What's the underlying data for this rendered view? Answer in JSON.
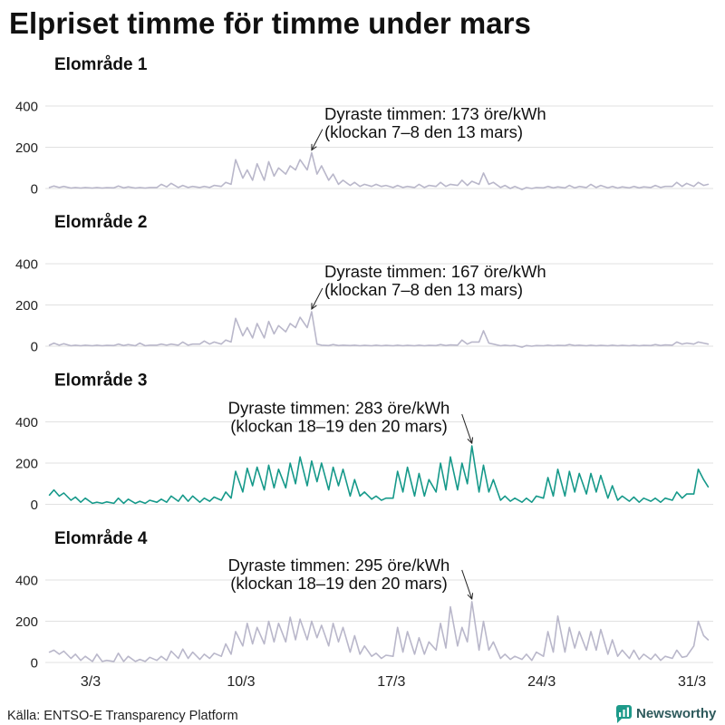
{
  "chart_data": {
    "type": "line",
    "title": "Elpriset timme för timme under mars",
    "x_ticks": [
      "3/3",
      "10/3",
      "17/3",
      "24/3",
      "31/3"
    ],
    "y_ticks": [
      0,
      200,
      400
    ],
    "ylim": [
      0,
      400
    ],
    "grid": "horizontal",
    "x": [
      "1/3 02:00",
      "1/3 07:00",
      "1/3 13:00",
      "1/3 18:00",
      "2/3 02:00",
      "2/3 07:00",
      "2/3 13:00",
      "2/3 18:00",
      "3/3 02:00",
      "3/3 07:00",
      "3/3 13:00",
      "3/3 18:00",
      "4/3 02:00",
      "4/3 07:00",
      "4/3 13:00",
      "4/3 18:00",
      "5/3 02:00",
      "5/3 07:00",
      "5/3 13:00",
      "5/3 18:00",
      "6/3 02:00",
      "6/3 07:00",
      "6/3 13:00",
      "6/3 18:00",
      "7/3 02:00",
      "7/3 07:00",
      "7/3 13:00",
      "7/3 18:00",
      "8/3 02:00",
      "8/3 07:00",
      "8/3 13:00",
      "8/3 18:00",
      "9/3 02:00",
      "9/3 07:00",
      "9/3 13:00",
      "9/3 18:00",
      "10/3 02:00",
      "10/3 07:00",
      "10/3 13:00",
      "10/3 18:00",
      "11/3 02:00",
      "11/3 07:00",
      "11/3 13:00",
      "11/3 18:00",
      "12/3 02:00",
      "12/3 07:00",
      "12/3 13:00",
      "12/3 18:00",
      "13/3 02:00",
      "13/3 07:00",
      "13/3 13:00",
      "13/3 18:00",
      "14/3 02:00",
      "14/3 07:00",
      "14/3 13:00",
      "14/3 18:00",
      "15/3 02:00",
      "15/3 07:00",
      "15/3 13:00",
      "15/3 18:00",
      "16/3 02:00",
      "16/3 07:00",
      "16/3 13:00",
      "16/3 18:00",
      "17/3 02:00",
      "17/3 07:00",
      "17/3 13:00",
      "17/3 18:00",
      "18/3 02:00",
      "18/3 07:00",
      "18/3 13:00",
      "18/3 18:00",
      "19/3 02:00",
      "19/3 07:00",
      "19/3 13:00",
      "19/3 18:00",
      "20/3 02:00",
      "20/3 07:00",
      "20/3 13:00",
      "20/3 18:00",
      "21/3 02:00",
      "21/3 07:00",
      "21/3 13:00",
      "21/3 18:00",
      "22/3 02:00",
      "22/3 07:00",
      "22/3 13:00",
      "22/3 18:00",
      "23/3 02:00",
      "23/3 07:00",
      "23/3 13:00",
      "23/3 18:00",
      "24/3 02:00",
      "24/3 07:00",
      "24/3 13:00",
      "24/3 18:00",
      "25/3 02:00",
      "25/3 07:00",
      "25/3 13:00",
      "25/3 18:00",
      "26/3 02:00",
      "26/3 07:00",
      "26/3 13:00",
      "26/3 18:00",
      "27/3 02:00",
      "27/3 07:00",
      "27/3 13:00",
      "27/3 18:00",
      "28/3 02:00",
      "28/3 07:00",
      "28/3 13:00",
      "28/3 18:00",
      "29/3 02:00",
      "29/3 07:00",
      "29/3 13:00",
      "29/3 18:00",
      "30/3 02:00",
      "30/3 07:00",
      "30/3 13:00",
      "30/3 18:00",
      "31/3 02:00",
      "31/3 07:00",
      "31/3 13:00",
      "31/3 18:00"
    ],
    "series": [
      {
        "name": "Elområde 1",
        "color": "#b9b7ca",
        "annotation": [
          "Dyraste timmen: 173 öre/kWh",
          "(klockan 7–8 den 13 mars)"
        ],
        "values": [
          5,
          12,
          5,
          10,
          2,
          5,
          2,
          5,
          2,
          5,
          2,
          4,
          3,
          12,
          3,
          8,
          2,
          5,
          2,
          5,
          5,
          20,
          8,
          25,
          5,
          15,
          5,
          10,
          5,
          10,
          5,
          15,
          10,
          30,
          20,
          140,
          50,
          90,
          40,
          120,
          40,
          130,
          60,
          100,
          70,
          110,
          90,
          140,
          90,
          173,
          70,
          110,
          40,
          70,
          20,
          40,
          15,
          30,
          10,
          20,
          10,
          20,
          10,
          15,
          5,
          15,
          5,
          10,
          5,
          20,
          5,
          15,
          10,
          30,
          10,
          20,
          15,
          40,
          15,
          35,
          20,
          75,
          20,
          30,
          5,
          15,
          0,
          10,
          -5,
          5,
          0,
          5,
          3,
          10,
          3,
          8,
          3,
          15,
          3,
          10,
          5,
          20,
          5,
          15,
          3,
          10,
          2,
          8,
          3,
          10,
          3,
          8,
          5,
          15,
          5,
          10,
          10,
          30,
          10,
          25,
          10,
          30,
          15,
          20
        ]
      },
      {
        "name": "Elområde 2",
        "color": "#b9b7ca",
        "annotation": [
          "Dyraste timmen: 167 öre/kWh",
          "(klockan 7–8 den 13 mars)"
        ],
        "values": [
          5,
          15,
          5,
          12,
          2,
          5,
          2,
          5,
          2,
          5,
          2,
          4,
          3,
          10,
          3,
          8,
          2,
          15,
          2,
          5,
          5,
          10,
          5,
          10,
          5,
          20,
          5,
          10,
          10,
          25,
          10,
          20,
          10,
          30,
          20,
          135,
          50,
          90,
          40,
          110,
          40,
          120,
          60,
          100,
          70,
          110,
          90,
          140,
          90,
          167,
          10,
          5,
          3,
          8,
          3,
          5,
          3,
          5,
          2,
          4,
          2,
          5,
          2,
          4,
          2,
          5,
          2,
          4,
          2,
          5,
          2,
          4,
          3,
          8,
          3,
          6,
          5,
          30,
          10,
          20,
          20,
          75,
          15,
          10,
          2,
          5,
          2,
          4,
          -5,
          3,
          0,
          3,
          2,
          5,
          2,
          4,
          3,
          8,
          3,
          5,
          2,
          5,
          2,
          4,
          2,
          5,
          2,
          4,
          2,
          5,
          2,
          4,
          3,
          8,
          3,
          6,
          5,
          20,
          10,
          15,
          10,
          20,
          15,
          10
        ]
      },
      {
        "name": "Elområde 3",
        "color": "#16998a",
        "annotation": [
          "Dyraste timmen: 283 öre/kWh",
          "(klockan 18–19 den 20 mars)"
        ],
        "values": [
          45,
          70,
          40,
          55,
          20,
          35,
          10,
          30,
          5,
          10,
          5,
          12,
          5,
          30,
          5,
          25,
          5,
          15,
          5,
          20,
          10,
          25,
          10,
          40,
          15,
          45,
          15,
          40,
          10,
          30,
          15,
          35,
          20,
          60,
          30,
          160,
          60,
          175,
          90,
          180,
          70,
          190,
          80,
          170,
          80,
          200,
          100,
          230,
          90,
          210,
          110,
          200,
          70,
          180,
          90,
          170,
          40,
          120,
          40,
          60,
          25,
          40,
          20,
          30,
          30,
          160,
          60,
          180,
          40,
          150,
          40,
          120,
          60,
          200,
          70,
          230,
          70,
          200,
          100,
          283,
          60,
          190,
          60,
          120,
          20,
          40,
          15,
          30,
          10,
          30,
          10,
          40,
          30,
          130,
          40,
          170,
          40,
          160,
          60,
          150,
          50,
          150,
          60,
          140,
          30,
          90,
          20,
          40,
          15,
          35,
          10,
          30,
          15,
          30,
          10,
          30,
          20,
          60,
          30,
          50,
          50,
          170,
          120,
          85
        ]
      },
      {
        "name": "Elområde 4",
        "color": "#b9b7ca",
        "annotation": [
          "Dyraste timmen: 295 öre/kWh",
          "(klockan 18–19 den 20 mars)"
        ],
        "values": [
          50,
          60,
          40,
          55,
          20,
          40,
          10,
          30,
          5,
          40,
          5,
          10,
          5,
          45,
          5,
          30,
          5,
          15,
          5,
          25,
          10,
          30,
          10,
          55,
          20,
          65,
          20,
          50,
          15,
          40,
          20,
          45,
          30,
          90,
          40,
          150,
          80,
          190,
          90,
          170,
          90,
          200,
          100,
          190,
          100,
          220,
          110,
          210,
          110,
          200,
          120,
          180,
          80,
          190,
          100,
          170,
          50,
          130,
          40,
          80,
          30,
          45,
          20,
          35,
          30,
          170,
          50,
          150,
          40,
          120,
          40,
          100,
          60,
          190,
          70,
          270,
          80,
          170,
          100,
          295,
          60,
          200,
          60,
          100,
          20,
          40,
          15,
          30,
          15,
          40,
          10,
          50,
          30,
          150,
          50,
          225,
          50,
          170,
          70,
          150,
          60,
          150,
          60,
          160,
          40,
          110,
          30,
          60,
          20,
          60,
          15,
          40,
          15,
          40,
          10,
          30,
          20,
          60,
          25,
          30,
          80,
          200,
          130,
          110
        ]
      }
    ]
  },
  "source": "Källa: ENTSO-E Transparency Platform",
  "brand": {
    "name": "Newsworthy",
    "icon": "bar-chart-icon",
    "color": "#1d9a8a"
  }
}
